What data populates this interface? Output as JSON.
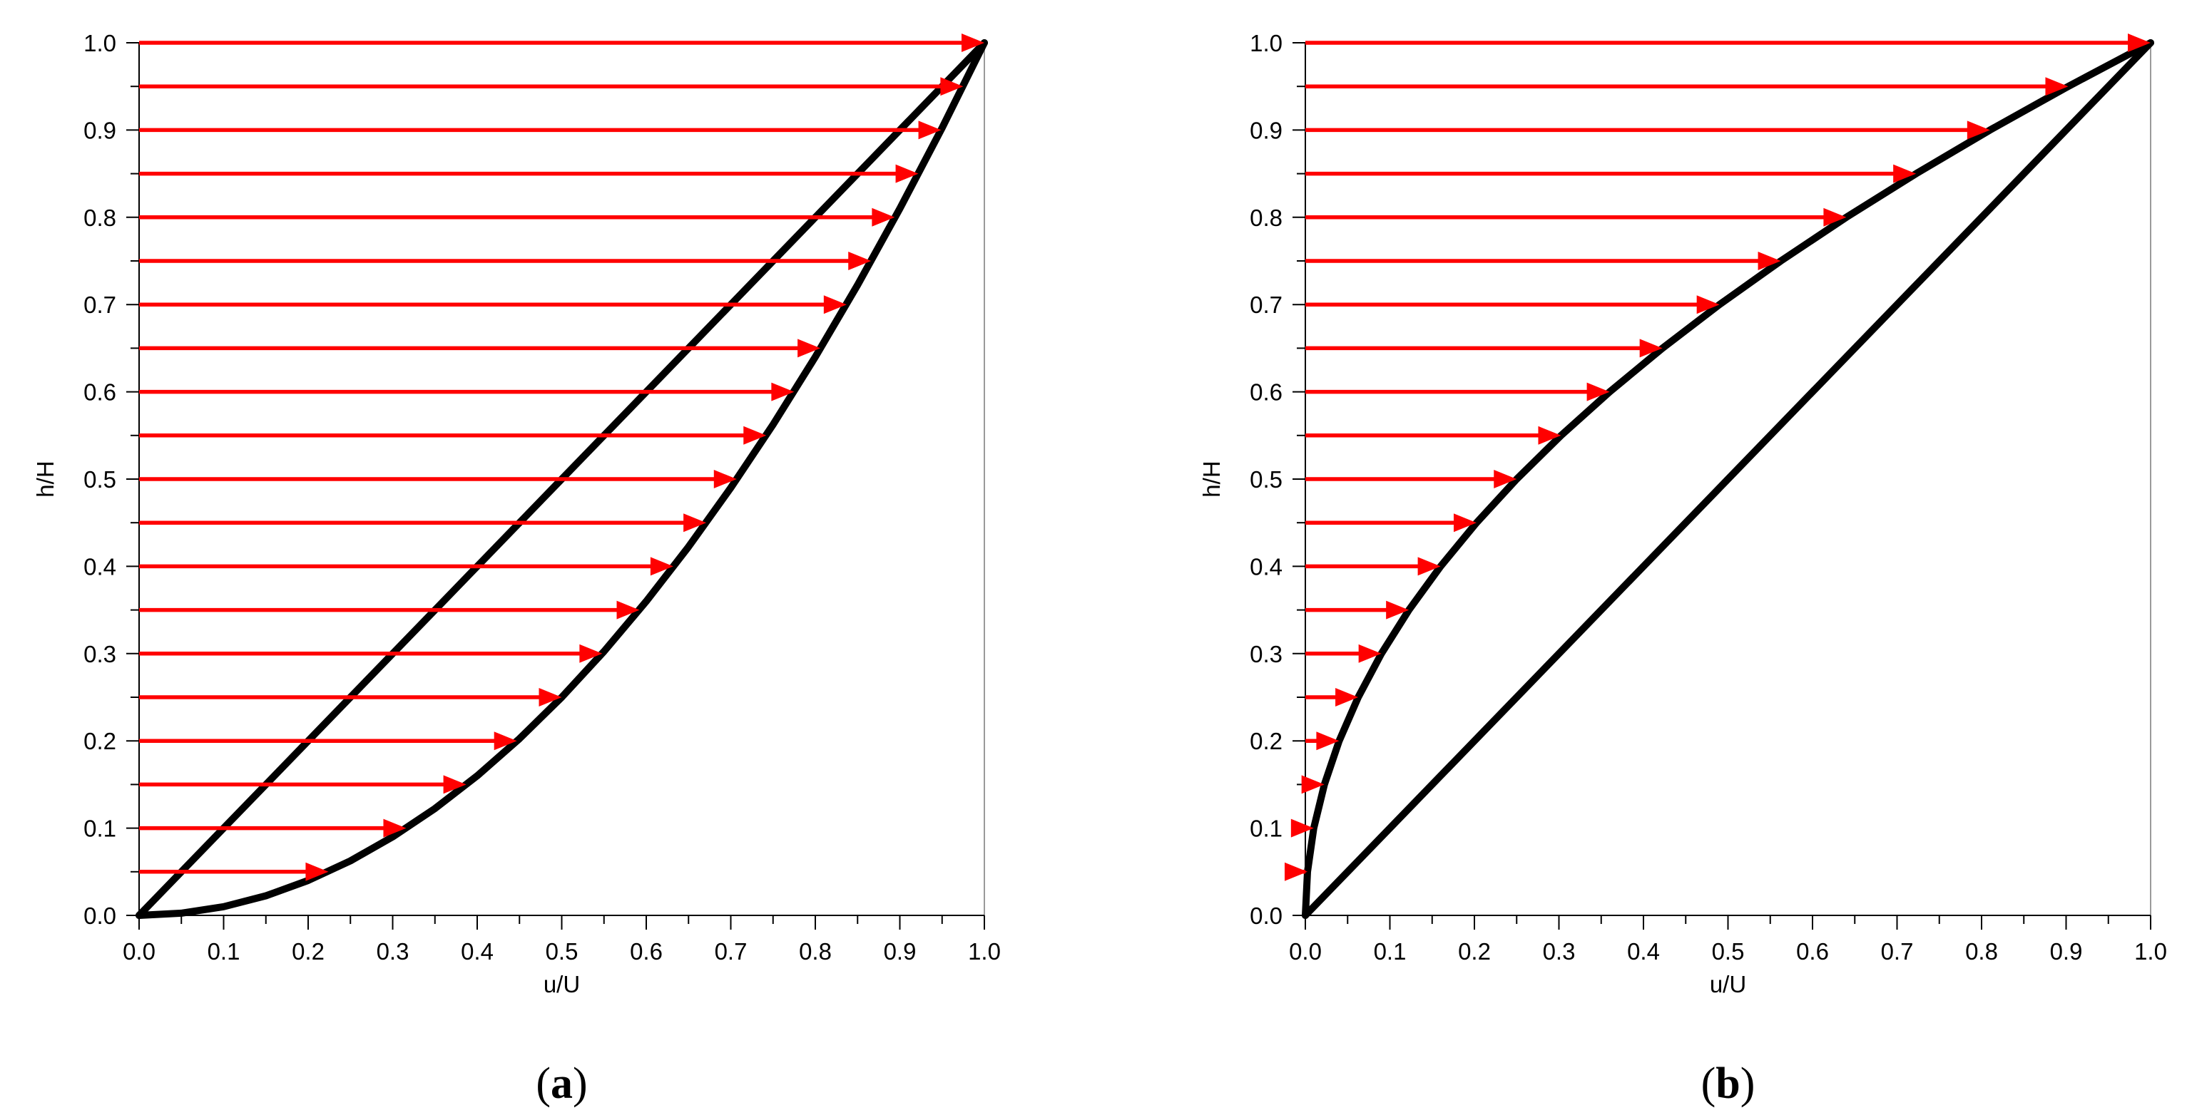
{
  "chart_data": [
    {
      "type": "line",
      "panel_label": "a",
      "xlabel": "u/U",
      "ylabel": "h/H",
      "xlim": [
        0,
        1
      ],
      "ylim": [
        0,
        1
      ],
      "x_ticks": [
        "0.0",
        "0.1",
        "0.2",
        "0.3",
        "0.4",
        "0.5",
        "0.6",
        "0.7",
        "0.8",
        "0.9",
        "1.0"
      ],
      "y_ticks": [
        "0.0",
        "0.1",
        "0.2",
        "0.3",
        "0.4",
        "0.5",
        "0.6",
        "0.7",
        "0.8",
        "0.9",
        "1.0"
      ],
      "grid": false,
      "series": [
        {
          "kind": "curve",
          "color": "#000000",
          "x": [
            0,
            0.25,
            0.5,
            0.75,
            1.0
          ],
          "y": [
            0,
            0.25,
            0.5,
            0.75,
            1.0
          ]
        },
        {
          "kind": "curve",
          "color": "#000000",
          "x": [
            0,
            0.05,
            0.1,
            0.15,
            0.2,
            0.25,
            0.3,
            0.35,
            0.4,
            0.45,
            0.5,
            0.55,
            0.6,
            0.65,
            0.7,
            0.75,
            0.8,
            0.85,
            0.9,
            0.95,
            1.0
          ],
          "y": [
            0,
            0.0025,
            0.01,
            0.0225,
            0.04,
            0.0625,
            0.09,
            0.1225,
            0.16,
            0.2025,
            0.25,
            0.3025,
            0.36,
            0.4225,
            0.49,
            0.5625,
            0.64,
            0.7225,
            0.81,
            0.9025,
            1.0
          ]
        },
        {
          "kind": "arrows",
          "color": "#ff0000",
          "h": [
            0.05,
            0.1,
            0.15,
            0.2,
            0.25,
            0.3,
            0.35,
            0.4,
            0.45,
            0.5,
            0.55,
            0.6,
            0.65,
            0.7,
            0.75,
            0.8,
            0.85,
            0.9,
            0.95,
            1.0
          ],
          "u": [
            0.224,
            0.316,
            0.387,
            0.447,
            0.5,
            0.548,
            0.592,
            0.632,
            0.671,
            0.707,
            0.742,
            0.775,
            0.806,
            0.837,
            0.866,
            0.894,
            0.922,
            0.949,
            0.975,
            1.0
          ]
        }
      ]
    },
    {
      "type": "line",
      "panel_label": "b",
      "xlabel": "u/U",
      "ylabel": "h/H",
      "xlim": [
        0,
        1
      ],
      "ylim": [
        0,
        1
      ],
      "x_ticks": [
        "0.0",
        "0.1",
        "0.2",
        "0.3",
        "0.4",
        "0.5",
        "0.6",
        "0.7",
        "0.8",
        "0.9",
        "1.0"
      ],
      "y_ticks": [
        "0.0",
        "0.1",
        "0.2",
        "0.3",
        "0.4",
        "0.5",
        "0.6",
        "0.7",
        "0.8",
        "0.9",
        "1.0"
      ],
      "grid": false,
      "series": [
        {
          "kind": "curve",
          "color": "#000000",
          "x": [
            0,
            0.25,
            0.5,
            0.75,
            1.0
          ],
          "y": [
            0,
            0.25,
            0.5,
            0.75,
            1.0
          ]
        },
        {
          "kind": "curve",
          "color": "#000000",
          "x": [
            0,
            0.0025,
            0.01,
            0.0225,
            0.04,
            0.0625,
            0.09,
            0.1225,
            0.16,
            0.2025,
            0.25,
            0.3025,
            0.36,
            0.4225,
            0.49,
            0.5625,
            0.64,
            0.7225,
            0.81,
            0.9025,
            1.0
          ],
          "y": [
            0,
            0.05,
            0.1,
            0.15,
            0.2,
            0.25,
            0.3,
            0.35,
            0.4,
            0.45,
            0.5,
            0.55,
            0.6,
            0.65,
            0.7,
            0.75,
            0.8,
            0.85,
            0.9,
            0.95,
            1.0
          ]
        },
        {
          "kind": "arrows",
          "color": "#ff0000",
          "h": [
            0.05,
            0.1,
            0.15,
            0.2,
            0.25,
            0.3,
            0.35,
            0.4,
            0.45,
            0.5,
            0.55,
            0.6,
            0.65,
            0.7,
            0.75,
            0.8,
            0.85,
            0.9,
            0.95,
            1.0
          ],
          "u": [
            0.0025,
            0.01,
            0.0225,
            0.04,
            0.0625,
            0.09,
            0.1225,
            0.16,
            0.2025,
            0.25,
            0.3025,
            0.36,
            0.4225,
            0.49,
            0.5625,
            0.64,
            0.7225,
            0.81,
            0.9025,
            1.0
          ]
        }
      ]
    }
  ]
}
